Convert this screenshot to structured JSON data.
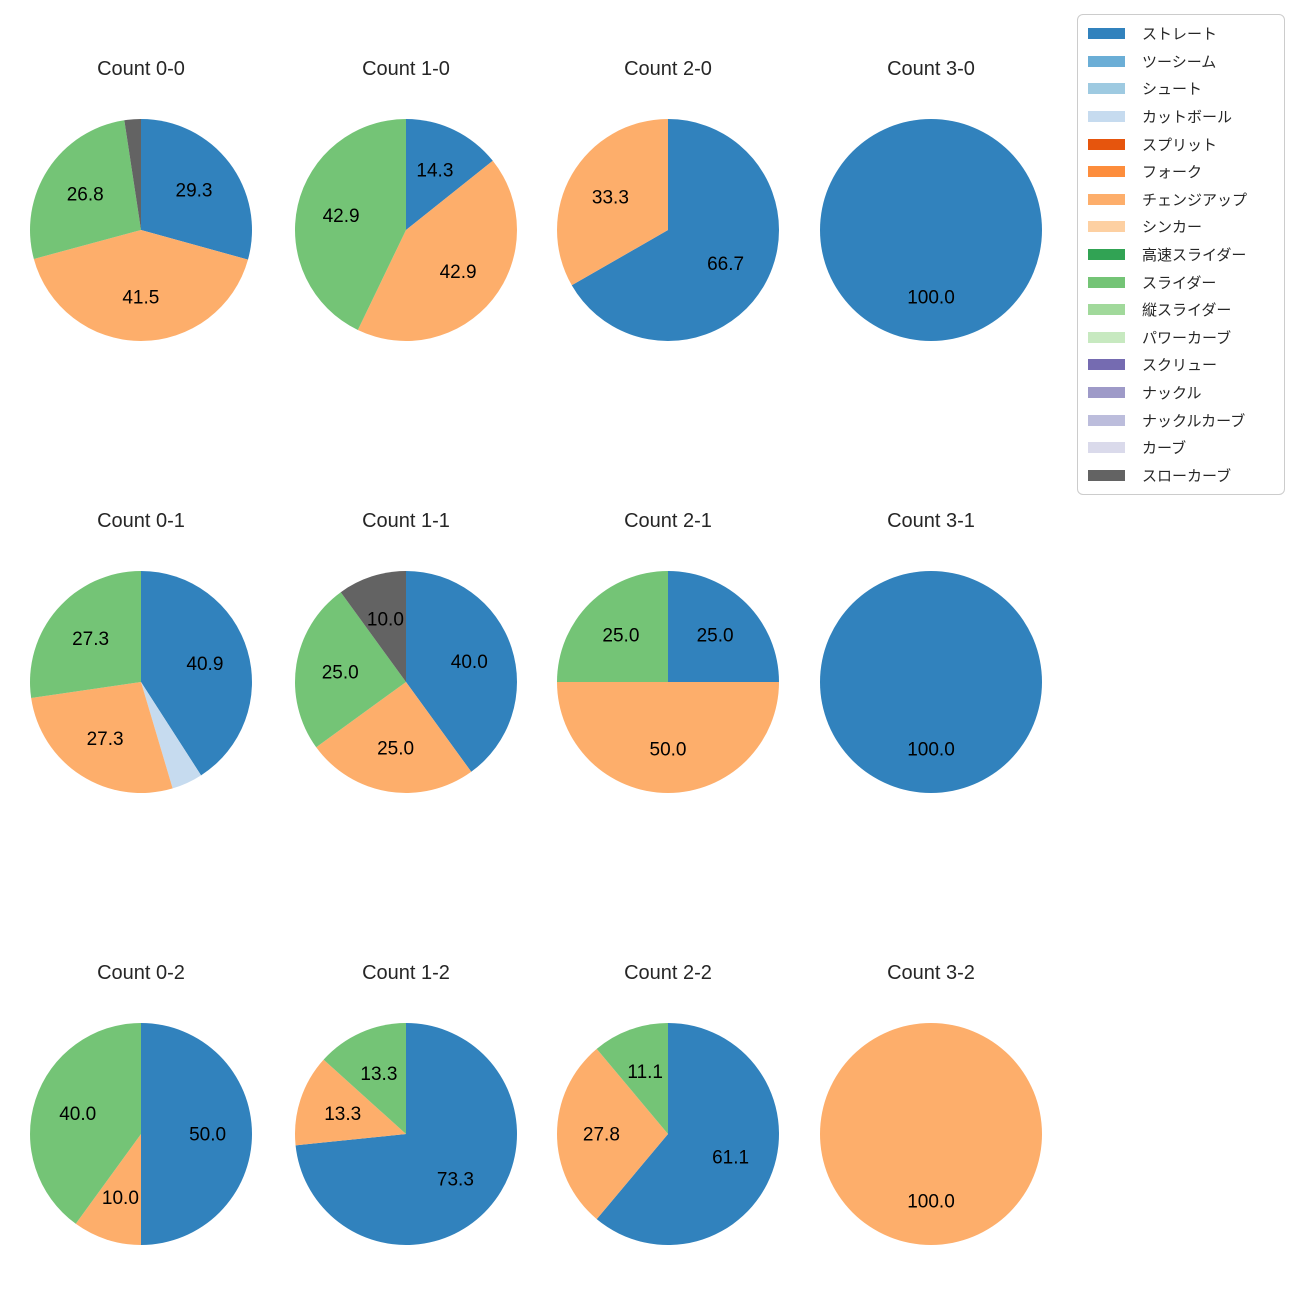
{
  "figure": {
    "background": "#ffffff",
    "title_color": "#262626",
    "value_label_color": "#000000"
  },
  "chart_data": {
    "type": "pie",
    "unit": "percent",
    "start_angle": "top",
    "direction": "clockwise",
    "pct_distance": 0.6,
    "legend": {
      "position": "upper right",
      "entries": [
        {
          "label": "ストレート",
          "color": "#3182bd"
        },
        {
          "label": "ツーシーム",
          "color": "#6baed6"
        },
        {
          "label": "シュート",
          "color": "#9ecae1"
        },
        {
          "label": "カットボール",
          "color": "#c6dbef"
        },
        {
          "label": "スプリット",
          "color": "#e6550d"
        },
        {
          "label": "フォーク",
          "color": "#fd8d3c"
        },
        {
          "label": "チェンジアップ",
          "color": "#fdae6b"
        },
        {
          "label": "シンカー",
          "color": "#fdd0a2"
        },
        {
          "label": "高速スライダー",
          "color": "#31a354"
        },
        {
          "label": "スライダー",
          "color": "#74c476"
        },
        {
          "label": "縦スライダー",
          "color": "#a1d99b"
        },
        {
          "label": "パワーカーブ",
          "color": "#c7e9c0"
        },
        {
          "label": "スクリュー",
          "color": "#756bb1"
        },
        {
          "label": "ナックル",
          "color": "#9e9ac8"
        },
        {
          "label": "ナックルカーブ",
          "color": "#bcbddc"
        },
        {
          "label": "カーブ",
          "color": "#dadaeb"
        },
        {
          "label": "スローカーブ",
          "color": "#636363"
        }
      ]
    },
    "charts": [
      {
        "title": "Count 0-0",
        "slices": [
          {
            "label": "ストレート",
            "value": 29.3,
            "pct_label": "29.3",
            "color": "#3182bd"
          },
          {
            "label": "チェンジアップ",
            "value": 41.5,
            "pct_label": "41.5",
            "color": "#fdae6b"
          },
          {
            "label": "スライダー",
            "value": 26.8,
            "pct_label": "26.8",
            "color": "#74c476"
          },
          {
            "label": "スローカーブ",
            "value": 2.4,
            "pct_label": "",
            "color": "#636363"
          }
        ]
      },
      {
        "title": "Count 1-0",
        "slices": [
          {
            "label": "ストレート",
            "value": 14.3,
            "pct_label": "14.3",
            "color": "#3182bd"
          },
          {
            "label": "チェンジアップ",
            "value": 42.9,
            "pct_label": "42.9",
            "color": "#fdae6b"
          },
          {
            "label": "スライダー",
            "value": 42.9,
            "pct_label": "42.9",
            "color": "#74c476"
          }
        ]
      },
      {
        "title": "Count 2-0",
        "slices": [
          {
            "label": "ストレート",
            "value": 66.7,
            "pct_label": "66.7",
            "color": "#3182bd"
          },
          {
            "label": "チェンジアップ",
            "value": 33.3,
            "pct_label": "33.3",
            "color": "#fdae6b"
          }
        ]
      },
      {
        "title": "Count 3-0",
        "slices": [
          {
            "label": "ストレート",
            "value": 100.0,
            "pct_label": "100.0",
            "color": "#3182bd"
          }
        ]
      },
      {
        "title": "Count 0-1",
        "slices": [
          {
            "label": "ストレート",
            "value": 40.9,
            "pct_label": "40.9",
            "color": "#3182bd"
          },
          {
            "label": "カットボール",
            "value": 4.5,
            "pct_label": "",
            "color": "#c6dbef"
          },
          {
            "label": "チェンジアップ",
            "value": 27.3,
            "pct_label": "27.3",
            "color": "#fdae6b"
          },
          {
            "label": "スライダー",
            "value": 27.3,
            "pct_label": "27.3",
            "color": "#74c476"
          }
        ]
      },
      {
        "title": "Count 1-1",
        "slices": [
          {
            "label": "ストレート",
            "value": 40.0,
            "pct_label": "40.0",
            "color": "#3182bd"
          },
          {
            "label": "チェンジアップ",
            "value": 25.0,
            "pct_label": "25.0",
            "color": "#fdae6b"
          },
          {
            "label": "スライダー",
            "value": 25.0,
            "pct_label": "25.0",
            "color": "#74c476"
          },
          {
            "label": "スローカーブ",
            "value": 10.0,
            "pct_label": "10.0",
            "color": "#636363"
          }
        ]
      },
      {
        "title": "Count 2-1",
        "slices": [
          {
            "label": "ストレート",
            "value": 25.0,
            "pct_label": "25.0",
            "color": "#3182bd"
          },
          {
            "label": "チェンジアップ",
            "value": 50.0,
            "pct_label": "50.0",
            "color": "#fdae6b"
          },
          {
            "label": "スライダー",
            "value": 25.0,
            "pct_label": "25.0",
            "color": "#74c476"
          }
        ]
      },
      {
        "title": "Count 3-1",
        "slices": [
          {
            "label": "ストレート",
            "value": 100.0,
            "pct_label": "100.0",
            "color": "#3182bd"
          }
        ]
      },
      {
        "title": "Count 0-2",
        "slices": [
          {
            "label": "ストレート",
            "value": 50.0,
            "pct_label": "50.0",
            "color": "#3182bd"
          },
          {
            "label": "チェンジアップ",
            "value": 10.0,
            "pct_label": "10.0",
            "color": "#fdae6b"
          },
          {
            "label": "スライダー",
            "value": 40.0,
            "pct_label": "40.0",
            "color": "#74c476"
          }
        ]
      },
      {
        "title": "Count 1-2",
        "slices": [
          {
            "label": "ストレート",
            "value": 73.3,
            "pct_label": "73.3",
            "color": "#3182bd"
          },
          {
            "label": "チェンジアップ",
            "value": 13.3,
            "pct_label": "13.3",
            "color": "#fdae6b"
          },
          {
            "label": "スライダー",
            "value": 13.3,
            "pct_label": "13.3",
            "color": "#74c476"
          }
        ]
      },
      {
        "title": "Count 2-2",
        "slices": [
          {
            "label": "ストレート",
            "value": 61.1,
            "pct_label": "61.1",
            "color": "#3182bd"
          },
          {
            "label": "チェンジアップ",
            "value": 27.8,
            "pct_label": "27.8",
            "color": "#fdae6b"
          },
          {
            "label": "スライダー",
            "value": 11.1,
            "pct_label": "11.1",
            "color": "#74c476"
          }
        ]
      },
      {
        "title": "Count 3-2",
        "slices": [
          {
            "label": "チェンジアップ",
            "value": 100.0,
            "pct_label": "100.0",
            "color": "#fdae6b"
          }
        ]
      }
    ]
  }
}
